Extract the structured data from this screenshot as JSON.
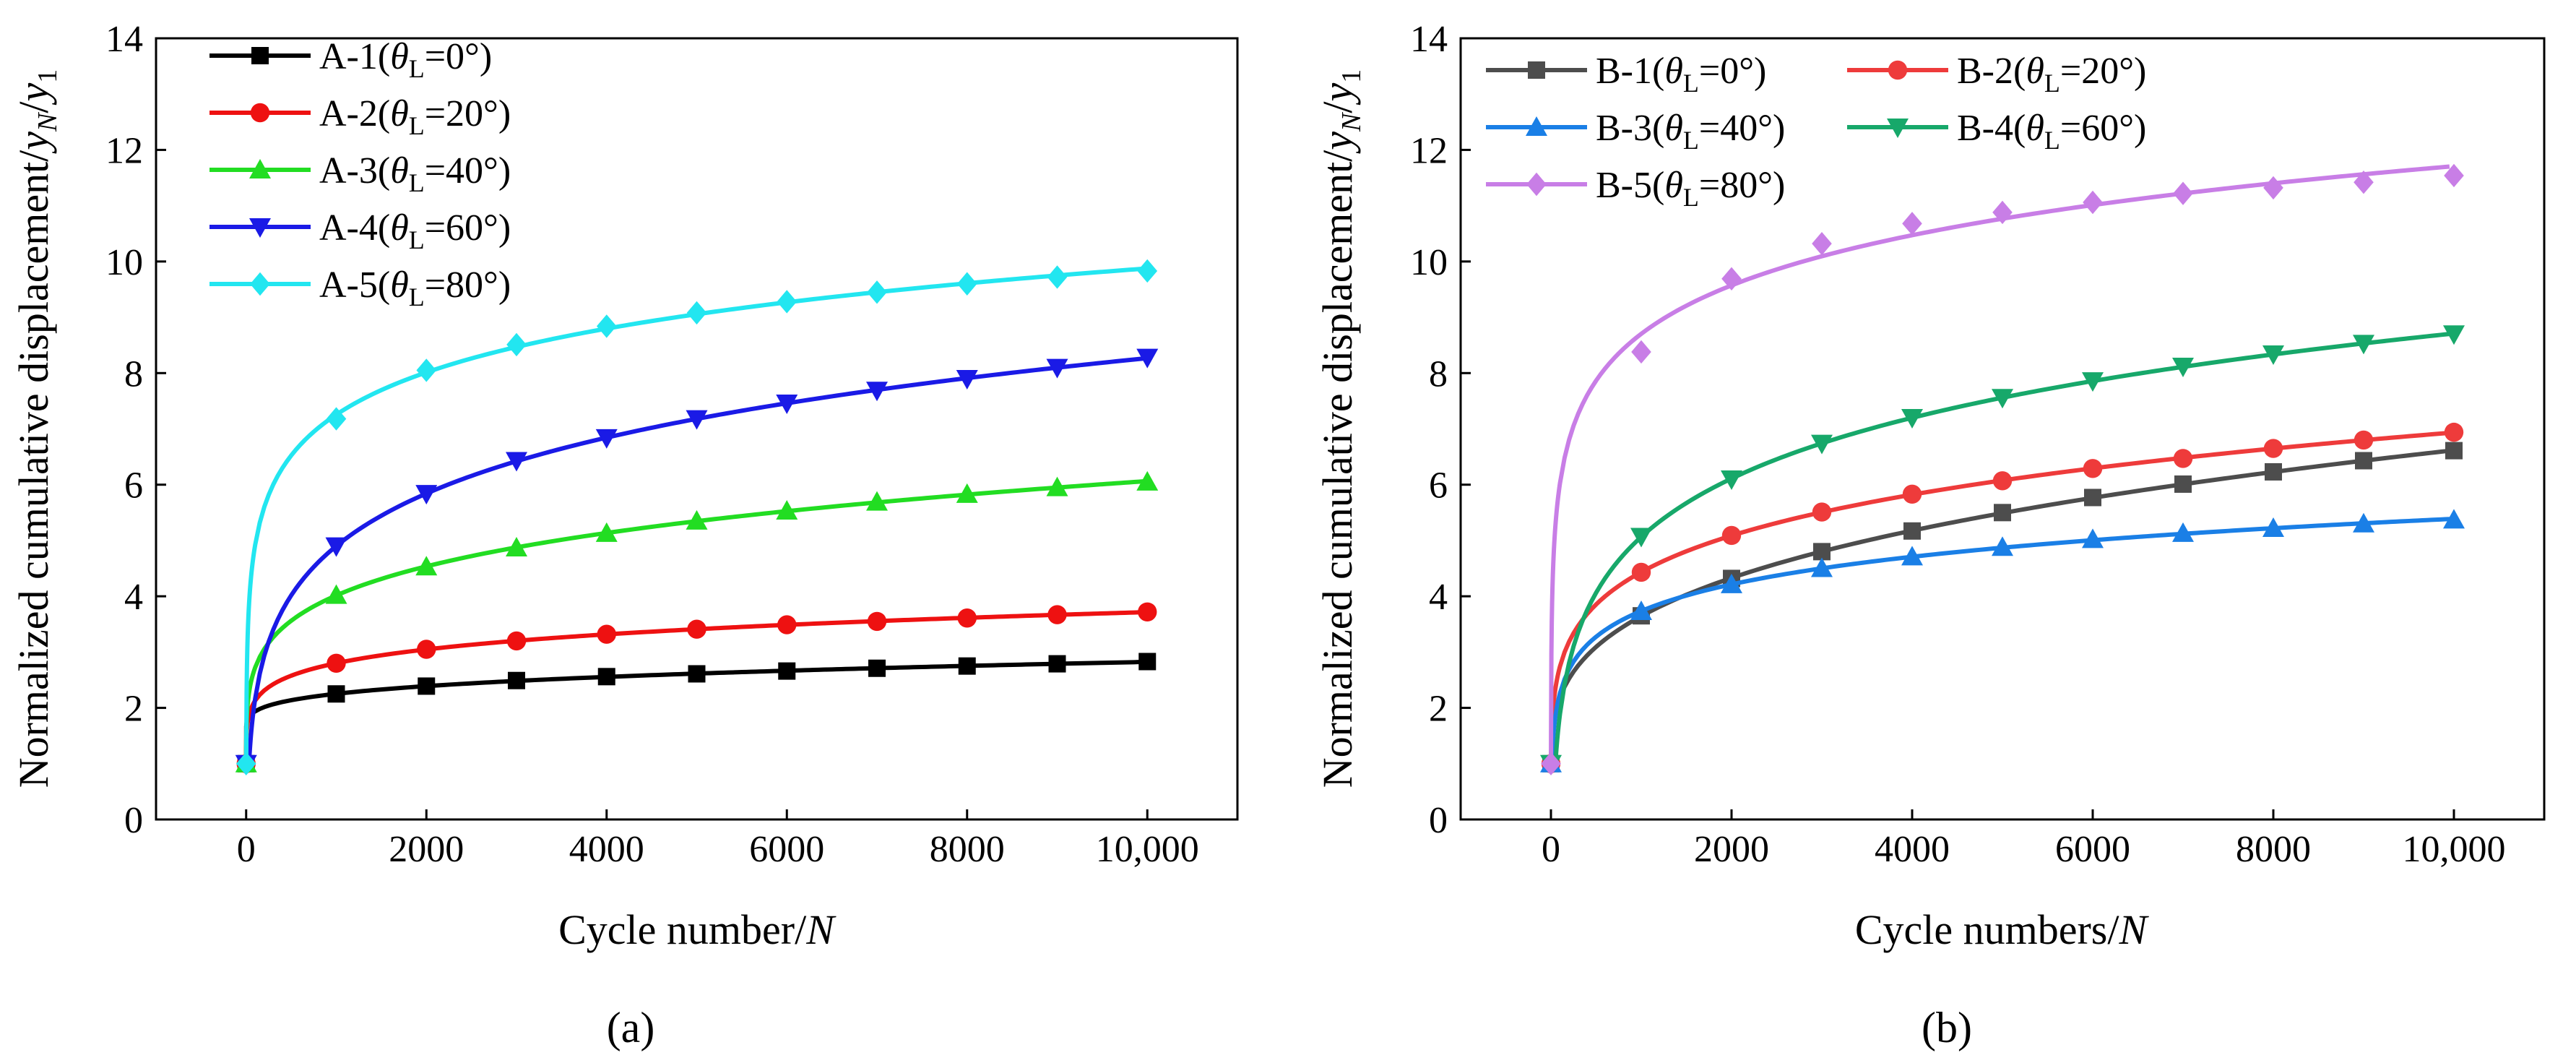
{
  "colors": {
    "A-1": "#000000",
    "A-2": "#ee1111",
    "A-3": "#22dd22",
    "A-4": "#1a1ae6",
    "A-5": "#22e6f0",
    "B-1": "#4d4d4d",
    "B-2": "#ee3b3b",
    "B-3": "#1a7fe6",
    "B-4": "#17a86a",
    "B-5": "#c87ee6"
  },
  "chart_data": [
    {
      "id": "a",
      "panel_label": "(a)",
      "type": "line",
      "xlabel": "Cycle number/",
      "xlabel_italic": "N",
      "ylabel": "Normalized cumulative displacement/",
      "ylabel_italic": "yN/y1",
      "xlim": [
        -1000,
        11000
      ],
      "ylim": [
        0,
        14
      ],
      "xticks": [
        0,
        2000,
        4000,
        6000,
        8000,
        10000
      ],
      "xtick_labels": [
        "0",
        "2000",
        "4000",
        "6000",
        "8000",
        "10,000"
      ],
      "yticks": [
        0,
        2,
        4,
        6,
        8,
        10,
        12,
        14
      ],
      "ytick_labels": [
        "0",
        "2",
        "4",
        "6",
        "8",
        "10",
        "12",
        "14"
      ],
      "legend_position": "top-left",
      "x": [
        0,
        1000,
        2000,
        3000,
        4000,
        5000,
        6000,
        7000,
        8000,
        9000,
        10000
      ],
      "series": [
        {
          "name": "A-1(θL=0°)",
          "color_key": "A-1",
          "marker": "square",
          "values": [
            1,
            2.25,
            2.39,
            2.49,
            2.56,
            2.61,
            2.66,
            2.71,
            2.75,
            2.79,
            2.83
          ]
        },
        {
          "name": "A-2(θL=20°)",
          "color_key": "A-2",
          "marker": "circle",
          "values": [
            1,
            2.8,
            3.05,
            3.2,
            3.32,
            3.41,
            3.49,
            3.55,
            3.61,
            3.67,
            3.72
          ]
        },
        {
          "name": "A-3(θL=40°)",
          "color_key": "A-3",
          "marker": "triangle-up",
          "values": [
            1,
            4.02,
            4.53,
            4.87,
            5.13,
            5.35,
            5.53,
            5.69,
            5.83,
            5.95,
            6.05
          ]
        },
        {
          "name": "A-4(θL=60°)",
          "color_key": "A-4",
          "marker": "triangle-down",
          "values": [
            1,
            4.9,
            5.84,
            6.43,
            6.84,
            7.18,
            7.46,
            7.69,
            7.9,
            8.1,
            8.28
          ]
        },
        {
          "name": "A-5(θL=80°)",
          "color_key": "A-5",
          "marker": "diamond",
          "values": [
            1,
            7.18,
            8.05,
            8.51,
            8.84,
            9.08,
            9.28,
            9.45,
            9.6,
            9.72,
            9.83
          ]
        }
      ]
    },
    {
      "id": "b",
      "panel_label": "(b)",
      "type": "line",
      "xlabel": "Cycle numbers/",
      "xlabel_italic": "N",
      "ylabel": "Normalized cumulative displacement/",
      "ylabel_italic": "yN/y1",
      "xlim": [
        -1000,
        11000
      ],
      "ylim": [
        0,
        14
      ],
      "xticks": [
        0,
        2000,
        4000,
        6000,
        8000,
        10000
      ],
      "xtick_labels": [
        "0",
        "2000",
        "4000",
        "6000",
        "8000",
        "10,000"
      ],
      "yticks": [
        0,
        2,
        4,
        6,
        8,
        10,
        12,
        14
      ],
      "ytick_labels": [
        "0",
        "2",
        "4",
        "6",
        "8",
        "10",
        "12",
        "14"
      ],
      "legend_position": "top-left",
      "x": [
        0,
        1000,
        2000,
        3000,
        4000,
        5000,
        6000,
        7000,
        8000,
        9000,
        10000
      ],
      "series": [
        {
          "name": "B-1(θL=0°)",
          "color_key": "B-1",
          "marker": "square",
          "values": [
            1,
            3.65,
            4.32,
            4.8,
            5.17,
            5.5,
            5.77,
            6.01,
            6.23,
            6.43,
            6.61
          ]
        },
        {
          "name": "B-2(θL=20°)",
          "color_key": "B-2",
          "marker": "circle",
          "values": [
            1,
            4.43,
            5.09,
            5.51,
            5.83,
            6.07,
            6.29,
            6.47,
            6.65,
            6.8,
            6.94
          ]
        },
        {
          "name": "B-3(θL=40°)",
          "color_key": "B-3",
          "marker": "triangle-up",
          "values": [
            1,
            3.73,
            4.21,
            4.5,
            4.71,
            4.88,
            5.02,
            5.13,
            5.22,
            5.3,
            5.37
          ]
        },
        {
          "name": "B-4(θL=60°)",
          "color_key": "B-4",
          "marker": "triangle-down",
          "values": [
            1,
            5.07,
            6.1,
            6.74,
            7.2,
            7.56,
            7.86,
            8.12,
            8.34,
            8.53,
            8.7
          ]
        },
        {
          "name": "B-5(θL=80°)",
          "color_key": "B-5",
          "marker": "diamond",
          "values": [
            1,
            8.38,
            9.69,
            10.32,
            10.68,
            10.88,
            11.06,
            11.22,
            11.32,
            11.42,
            11.54
          ]
        }
      ]
    }
  ]
}
